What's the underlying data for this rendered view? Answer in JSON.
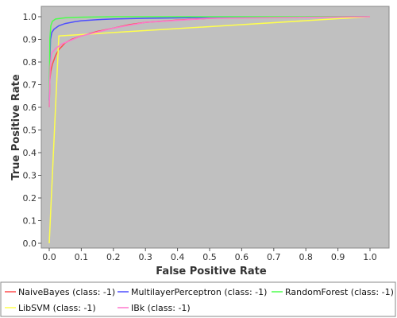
{
  "chart_data": {
    "type": "line",
    "title": "",
    "xlabel": "False Positive Rate",
    "ylabel": "True Positive Rate",
    "xlim": [
      0,
      1
    ],
    "ylim": [
      0,
      1
    ],
    "x_ticks": [
      "0.0",
      "0.1",
      "0.2",
      "0.3",
      "0.4",
      "0.5",
      "0.6",
      "0.7",
      "0.8",
      "0.9",
      "1.0"
    ],
    "y_ticks": [
      "0.0",
      "0.1",
      "0.2",
      "0.3",
      "0.4",
      "0.5",
      "0.6",
      "0.7",
      "0.8",
      "0.9",
      "1.0"
    ],
    "grid": false,
    "legend_position": "bottom",
    "plot_background": "#c0c0c0",
    "series": [
      {
        "name": "NaiveBayes (class: -1)",
        "color": "#ff4d4d",
        "points": [
          [
            0,
            0.6
          ],
          [
            0.002,
            0.72
          ],
          [
            0.005,
            0.76
          ],
          [
            0.01,
            0.79
          ],
          [
            0.02,
            0.83
          ],
          [
            0.03,
            0.855
          ],
          [
            0.04,
            0.87
          ],
          [
            0.05,
            0.885
          ],
          [
            0.07,
            0.9
          ],
          [
            0.1,
            0.915
          ],
          [
            0.15,
            0.935
          ],
          [
            0.2,
            0.95
          ],
          [
            0.25,
            0.965
          ],
          [
            0.3,
            0.975
          ],
          [
            0.4,
            0.985
          ],
          [
            0.5,
            0.993
          ],
          [
            0.6,
            0.997
          ],
          [
            0.8,
            0.999
          ],
          [
            1,
            1
          ]
        ]
      },
      {
        "name": "MultilayerPerceptron (class: -1)",
        "color": "#4d4dff",
        "points": [
          [
            0,
            0.63
          ],
          [
            0.002,
            0.8
          ],
          [
            0.004,
            0.9
          ],
          [
            0.008,
            0.93
          ],
          [
            0.015,
            0.945
          ],
          [
            0.03,
            0.96
          ],
          [
            0.05,
            0.97
          ],
          [
            0.08,
            0.978
          ],
          [
            0.1,
            0.982
          ],
          [
            0.15,
            0.987
          ],
          [
            0.2,
            0.99
          ],
          [
            0.3,
            0.993
          ],
          [
            0.5,
            0.997
          ],
          [
            0.7,
            0.999
          ],
          [
            1,
            1
          ]
        ]
      },
      {
        "name": "RandomForest (class: -1)",
        "color": "#4dff4d",
        "points": [
          [
            0,
            0.6
          ],
          [
            0.002,
            0.9
          ],
          [
            0.005,
            0.96
          ],
          [
            0.01,
            0.98
          ],
          [
            0.02,
            0.99
          ],
          [
            0.05,
            0.995
          ],
          [
            0.1,
            0.998
          ],
          [
            0.2,
            1
          ],
          [
            1,
            1
          ]
        ]
      },
      {
        "name": "LibSVM (class: -1)",
        "color": "#ffff4d",
        "points": [
          [
            0,
            0
          ],
          [
            0.03,
            0.915
          ],
          [
            1,
            1
          ]
        ]
      },
      {
        "name": "IBk (class: -1)",
        "color": "#ff77cc",
        "points": [
          [
            0,
            0.6
          ],
          [
            0.003,
            0.78
          ],
          [
            0.008,
            0.84
          ],
          [
            0.02,
            0.86
          ],
          [
            0.04,
            0.88
          ],
          [
            0.1,
            0.915
          ],
          [
            0.2,
            0.95
          ],
          [
            0.3,
            0.975
          ],
          [
            0.5,
            0.993
          ],
          [
            1,
            1
          ]
        ]
      }
    ]
  }
}
